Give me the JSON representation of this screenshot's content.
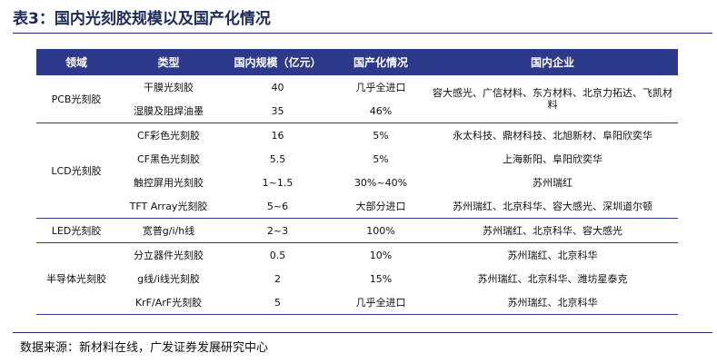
{
  "title": "表3：国内光刻胶规模以及国产化情况",
  "table": {
    "header": [
      "领域",
      "类型",
      "国内规模（亿元）",
      "国产化情况",
      "国内企业"
    ],
    "groups": [
      {
        "domain": "PCB光刻胶",
        "companies": "容大感光、广信材料、东方材料、北京力拓达、飞凯材料",
        "rows": [
          {
            "type": "干膜光刻胶",
            "scale": "40",
            "localization": "几乎全进口"
          },
          {
            "type": "湿膜及阻焊油墨",
            "scale": "35",
            "localization": "46%"
          }
        ]
      },
      {
        "domain": "LCD光刻胶",
        "rows": [
          {
            "type": "CF彩色光刻胶",
            "scale": "16",
            "localization": "5%",
            "companies": "永太科技、鼎材科技、北旭新材、阜阳欣奕华"
          },
          {
            "type": "CF黑色光刻胶",
            "scale": "5.5",
            "localization": "5%",
            "companies": "上海新阳、阜阳欣奕华"
          },
          {
            "type": "触控屏用光刻胶",
            "scale": "1~1.5",
            "localization": "30%~40%",
            "companies": "苏州瑞红"
          },
          {
            "type": "TFT Array光刻胶",
            "scale": "5~6",
            "localization": "大部分进口",
            "companies": "苏州瑞红、北京科华、容大感光、深圳道尔顿"
          }
        ]
      },
      {
        "domain": "LED光刻胶",
        "rows": [
          {
            "type": "宽普g/i/h线",
            "scale": "2~3",
            "localization": "100%",
            "companies": "苏州瑞红、北京科华、容大感光"
          }
        ]
      },
      {
        "domain": "半导体光刻胶",
        "rows": [
          {
            "type": "分立器件光刻胶",
            "scale": "0.5",
            "localization": "10%",
            "companies": "苏州瑞红、北京科华"
          },
          {
            "type": "g线/i线光刻胶",
            "scale": "2",
            "localization": "15%",
            "companies": "苏州瑞红、北京科华、潍坊星泰克"
          },
          {
            "type": "KrF/ArF光刻胶",
            "scale": "5",
            "localization": "几乎全进口",
            "companies": "苏州瑞红、北京科华"
          }
        ]
      }
    ]
  },
  "source": "数据来源：新材料在线，广发证券发展研究中心"
}
